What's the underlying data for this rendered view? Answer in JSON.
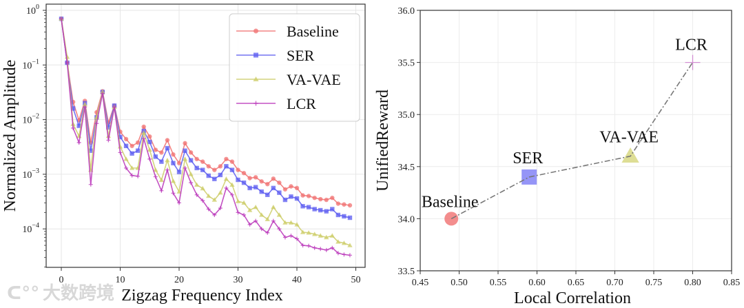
{
  "chart_data": [
    {
      "type": "line",
      "title": "",
      "xlabel": "Zigzag Frequency Index",
      "ylabel": "Normalized Amplitude",
      "yscale": "log",
      "xlim": [
        -2.5,
        51.5
      ],
      "ylim_log10": [
        -4.9,
        0.12
      ],
      "xticks": [
        0,
        10,
        20,
        30,
        40,
        50
      ],
      "yticks_exp": [
        0,
        -1,
        -2,
        -3,
        -4
      ],
      "grid": true,
      "legend_position": "top-right",
      "x": [
        0,
        1,
        2,
        3,
        4,
        5,
        6,
        7,
        8,
        9,
        10,
        11,
        12,
        13,
        14,
        15,
        16,
        17,
        18,
        19,
        20,
        21,
        22,
        23,
        24,
        25,
        26,
        27,
        28,
        29,
        30,
        31,
        32,
        33,
        34,
        35,
        36,
        37,
        38,
        39,
        40,
        41,
        42,
        43,
        44,
        45,
        46,
        47,
        48,
        49
      ],
      "series": [
        {
          "name": "Baseline",
          "color": "#f07070",
          "marker": "circle",
          "values": [
            0.7,
            0.11,
            0.021,
            0.0097,
            0.022,
            0.0038,
            0.0136,
            0.033,
            0.0088,
            0.018,
            0.006,
            0.0044,
            0.0033,
            0.0038,
            0.0074,
            0.0049,
            0.0028,
            0.0025,
            0.0042,
            0.0023,
            0.0016,
            0.0037,
            0.0025,
            0.0019,
            0.0017,
            0.0014,
            0.0012,
            0.0014,
            0.0019,
            0.0017,
            0.0012,
            0.00105,
            0.00085,
            0.00088,
            0.00074,
            0.00066,
            0.00083,
            0.0007,
            0.00053,
            0.0006,
            0.00056,
            0.00041,
            0.0004,
            0.00037,
            0.00035,
            0.00034,
            0.00037,
            0.00029,
            0.00028,
            0.00027
          ]
        },
        {
          "name": "SER",
          "color": "#5a5af0",
          "marker": "square",
          "values": [
            0.7,
            0.11,
            0.016,
            0.0077,
            0.02,
            0.0027,
            0.011,
            0.032,
            0.0072,
            0.018,
            0.0048,
            0.0033,
            0.0024,
            0.0027,
            0.0062,
            0.0039,
            0.0021,
            0.0017,
            0.003,
            0.0016,
            0.0011,
            0.0027,
            0.0018,
            0.0013,
            0.0012,
            0.00094,
            0.00082,
            0.00097,
            0.0014,
            0.0012,
            0.00079,
            0.0007,
            0.00056,
            0.00058,
            0.00048,
            0.00042,
            0.00056,
            0.00046,
            0.00034,
            0.00039,
            0.00036,
            0.00026,
            0.00025,
            0.00023,
            0.00022,
            0.00021,
            0.00023,
            0.00018,
            0.00017,
            0.00016
          ]
        },
        {
          "name": "VA-VAE",
          "color": "#cccc66",
          "marker": "triangle",
          "values": [
            0.7,
            0.14,
            0.0083,
            0.005,
            0.019,
            0.0012,
            0.011,
            0.032,
            0.005,
            0.017,
            0.0032,
            0.0019,
            0.0013,
            0.0013,
            0.0057,
            0.0028,
            0.0012,
            0.00078,
            0.0018,
            0.00075,
            0.00048,
            0.0019,
            0.001,
            0.00064,
            0.00055,
            0.0004,
            0.00034,
            0.00046,
            0.00082,
            0.00064,
            0.00032,
            0.0003,
            0.00022,
            0.00025,
            0.00018,
            0.00015,
            0.00025,
            0.00018,
            0.00013,
            0.00013,
            0.00012,
            8.7e-05,
            8.5e-05,
            8e-05,
            7.5e-05,
            7e-05,
            7.5e-05,
            5.8e-05,
            5.5e-05,
            5e-05
          ]
        },
        {
          "name": "LCR",
          "color": "#b833b8",
          "marker": "plus",
          "values": [
            0.7,
            0.11,
            0.007,
            0.0038,
            0.017,
            0.00065,
            0.0085,
            0.03,
            0.0042,
            0.017,
            0.0025,
            0.0013,
            0.00095,
            0.00092,
            0.0045,
            0.0019,
            0.0009,
            0.0005,
            0.0012,
            0.00045,
            0.0003,
            0.0013,
            0.0007,
            0.00042,
            0.00033,
            0.00023,
            0.00018,
            0.00024,
            0.00056,
            0.00042,
            0.0002,
            0.00018,
            0.00012,
            0.00014,
            0.0001,
            8.5e-05,
            0.00014,
            0.0001,
            7e-05,
            7.5e-05,
            6.6e-05,
            5e-05,
            4.9e-05,
            4.5e-05,
            4.3e-05,
            4.1e-05,
            4.5e-05,
            3.6e-05,
            3.4e-05,
            3.3e-05
          ]
        }
      ]
    },
    {
      "type": "scatter",
      "title": "",
      "xlabel": "Local Correlation",
      "ylabel": "UnifiedReward",
      "xlim": [
        0.45,
        0.85
      ],
      "ylim": [
        33.5,
        36.0
      ],
      "xticks": [
        "0.45",
        "0.50",
        "0.55",
        "0.60",
        "0.65",
        "0.70",
        "0.75",
        "0.80",
        "0.85"
      ],
      "yticks": [
        "33.5",
        "34.0",
        "34.5",
        "35.0",
        "35.5",
        "36.0"
      ],
      "grid": true,
      "connector": "dash-dot gray line",
      "points": [
        {
          "label": "Baseline",
          "x": 0.49,
          "y": 34.0,
          "color": "#f07070",
          "marker": "circle"
        },
        {
          "label": "SER",
          "x": 0.59,
          "y": 34.4,
          "color": "#7a7af5",
          "marker": "square"
        },
        {
          "label": "VA-VAE",
          "x": 0.72,
          "y": 34.6,
          "color": "#d6d67a",
          "marker": "triangle"
        },
        {
          "label": "LCR",
          "x": 0.8,
          "y": 35.5,
          "color": "#cc77cc",
          "marker": "plus"
        }
      ]
    }
  ],
  "watermark": {
    "text": "大数跨境"
  }
}
